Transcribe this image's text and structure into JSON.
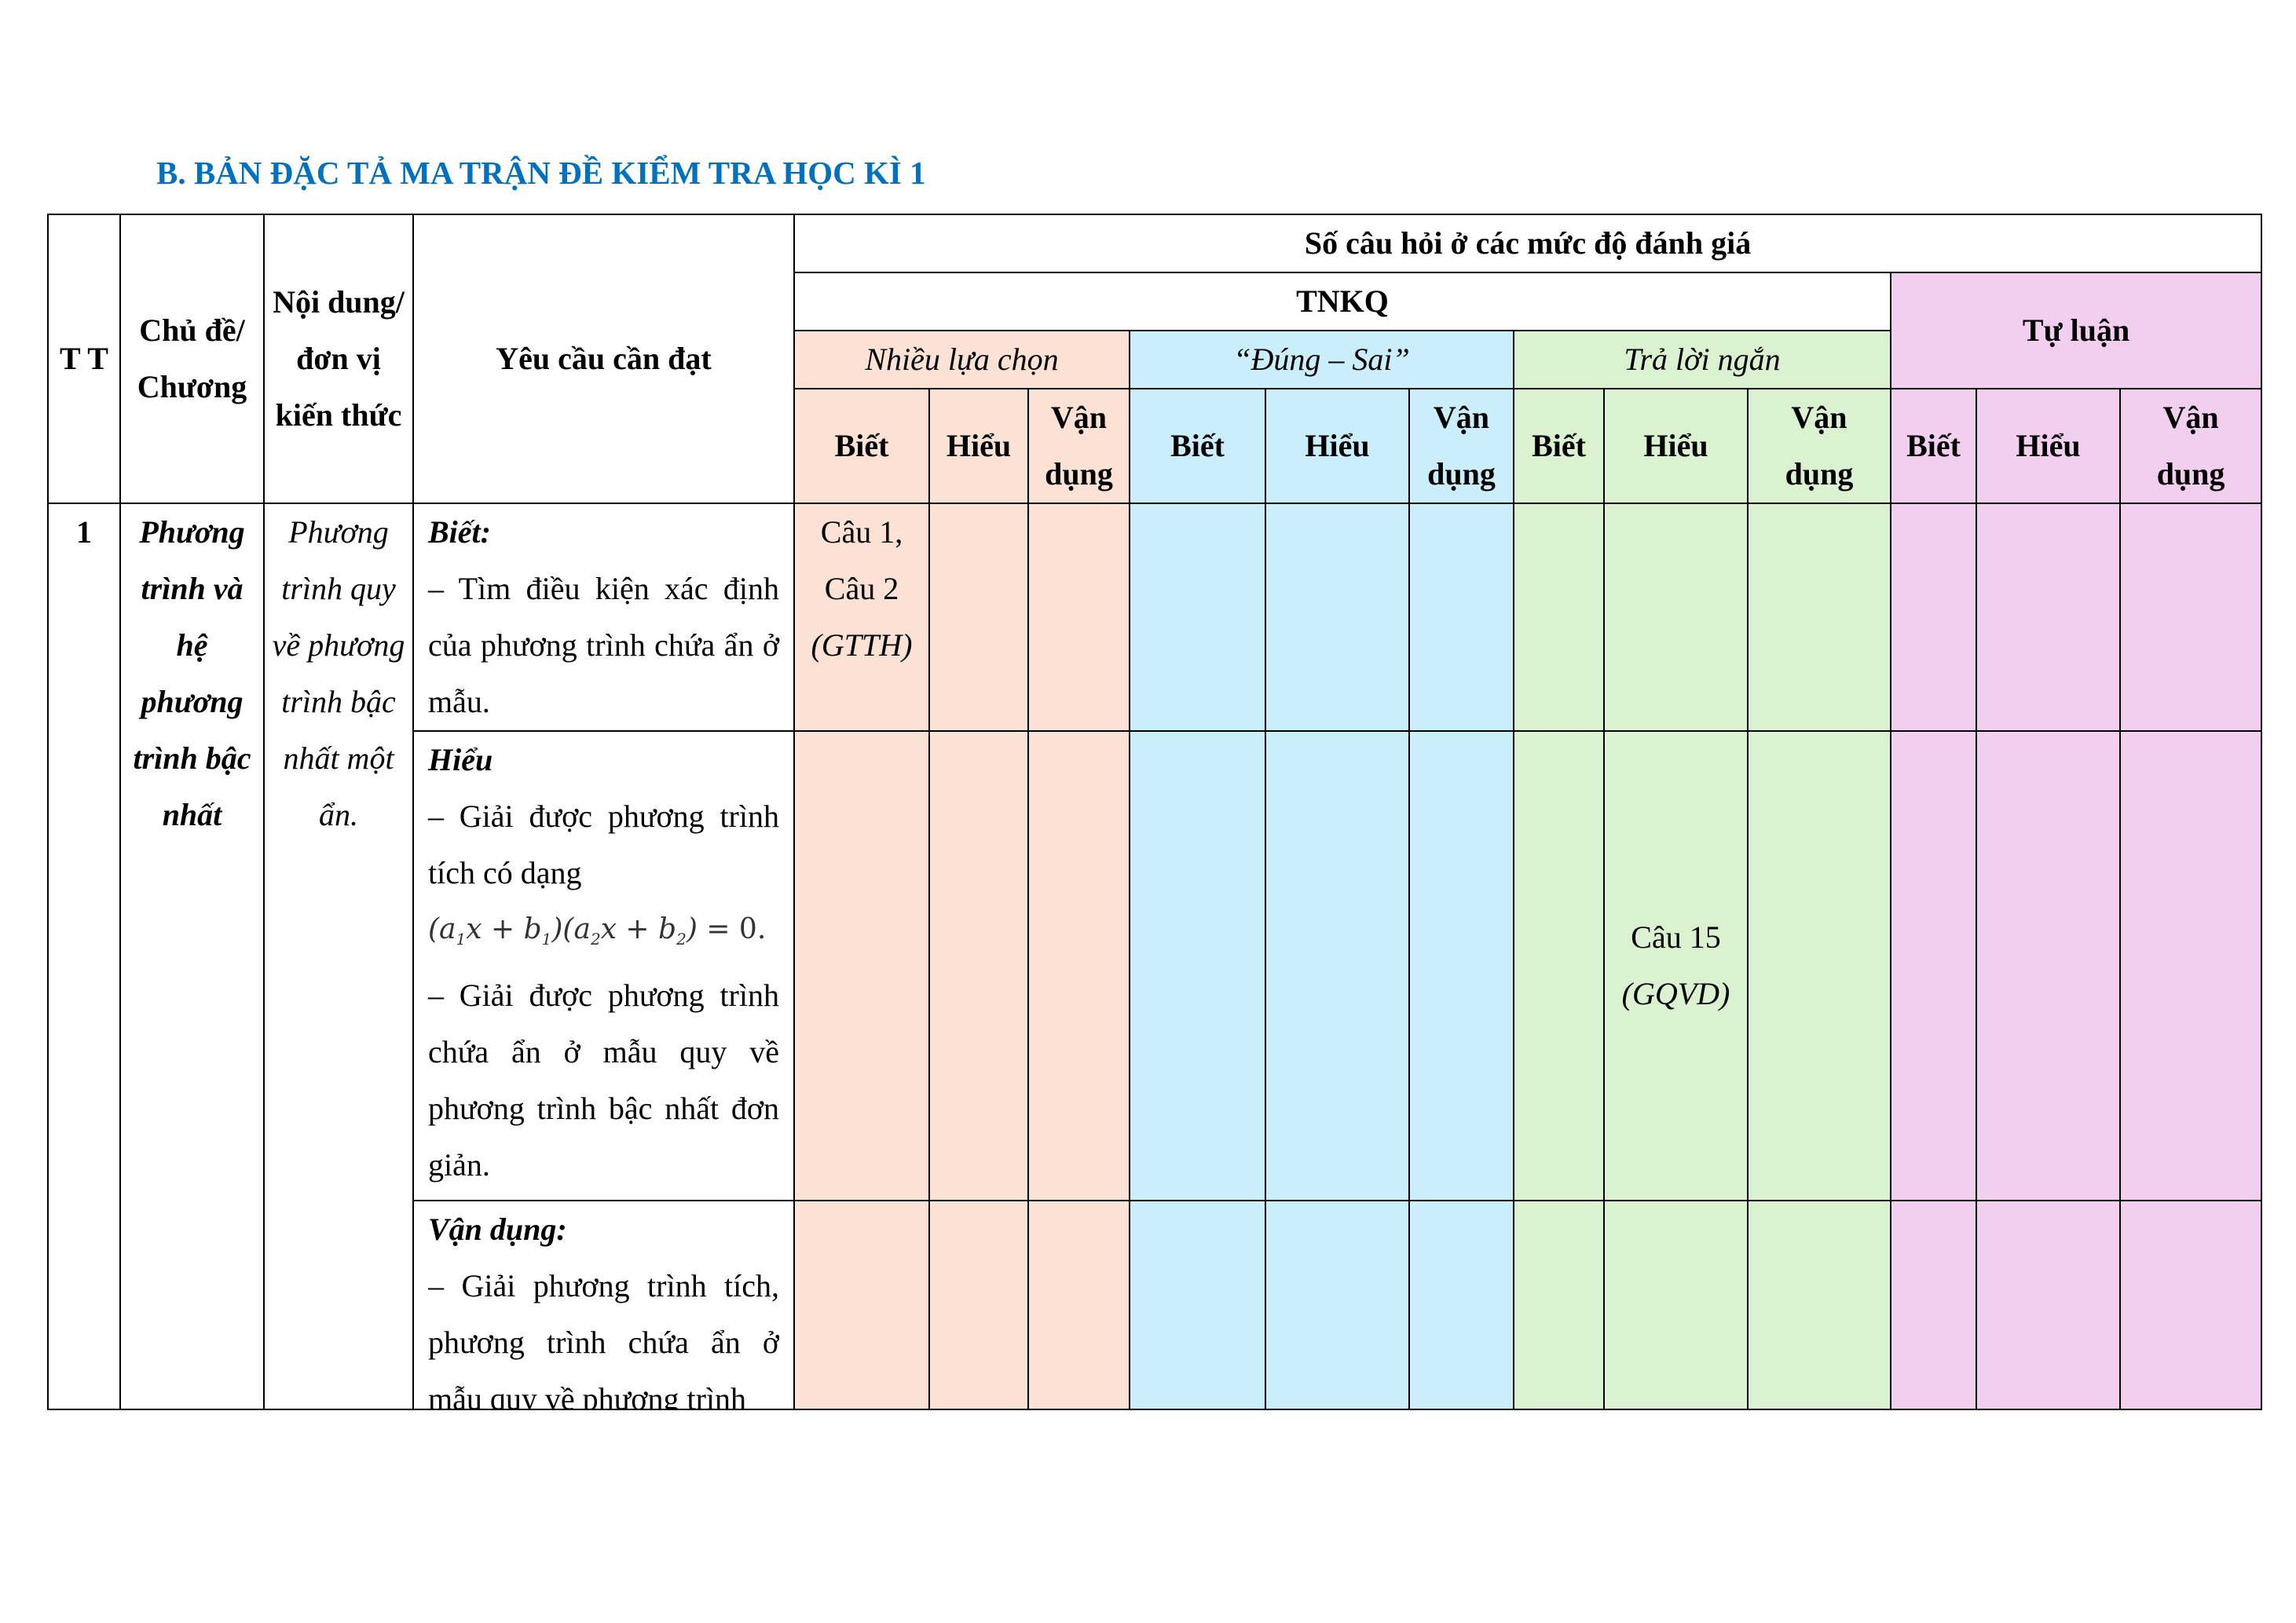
{
  "title": "B. BẢN ĐẶC TẢ MA TRẬN ĐỀ KIỂM TRA HỌC KÌ 1",
  "header": {
    "tt": "T T",
    "chu_de": "Chủ đề/ Chương",
    "noi_dung": "Nội dung/ đơn vị kiến thức",
    "yeu_cau": "Yêu cầu cần đạt",
    "so_cau": "Số câu hỏi ở các mức độ đánh giá",
    "tnkq": "TNKQ",
    "tu_luan": "Tự luận",
    "nhieu_lua_chon": "Nhiều lựa chọn",
    "dung_sai": "“Đúng – Sai”",
    "tra_loi_ngan": "Trả lời ngắn",
    "levels": [
      "Biết",
      "Hiểu",
      "Vận dụng",
      "Biết",
      "Hiểu",
      "Vận dụng",
      "Biết",
      "Hiểu",
      "Vận dụng",
      "Biết",
      "Hiểu",
      "Vận dụng"
    ]
  },
  "colors": {
    "title": "#0070c0",
    "nhieu_lua_chon": "#fbe2d5",
    "dung_sai": "#caeefb",
    "tra_loi_ngan": "#daf2d0",
    "tu_luan": "#f2ceef"
  },
  "rows": [
    {
      "tt": "1",
      "chu_de": "Phương trình và hệ phương trình bậc nhất",
      "noi_dung": "Phương trình quy về phương trình bậc nhất một ẩn.",
      "biet": {
        "label": "Biết:",
        "lines": [
          "– Tìm điều kiện xác định của phương trình chứa ẩn ở mẫu."
        ],
        "cell": "Câu 1, Câu 2",
        "cell_note": "(GTTH)"
      },
      "hieu": {
        "label": "Hiểu",
        "line1": "– Giải được phương trình tích có dạng",
        "formula": "(a1x + b1)(a2x + b2) = 0.",
        "line2": " – Giải được phương trình chứa ẩn ở mẫu quy về phương trình bậc nhất đơn giản.",
        "cell": "Câu 15",
        "cell_note": "(GQVD)"
      },
      "van_dung": {
        "label": "Vận dụng:",
        "line1": "– Giải phương trình tích, phương trình chứa ẩn ở mẫu quy về phương trình"
      }
    }
  ]
}
